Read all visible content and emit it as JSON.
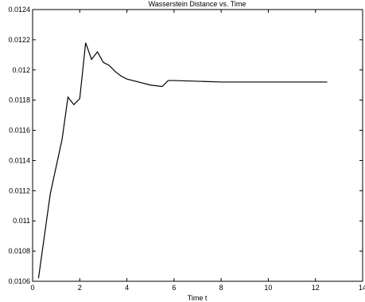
{
  "chart_data": {
    "type": "line",
    "title": "Wasserstein Distance vs. Time",
    "x_label": "Time t",
    "x": [
      0.25,
      0.75,
      1.25,
      1.5,
      1.75,
      2.0,
      2.25,
      2.5,
      2.75,
      3.0,
      3.25,
      3.5,
      3.75,
      4.0,
      4.5,
      5.0,
      5.5,
      5.75,
      6.0,
      8.0,
      10.0,
      12.5
    ],
    "series": [
      {
        "color": "#000000",
        "values": [
          0.01062,
          0.01118,
          0.01154,
          0.01182,
          0.01177,
          0.01181,
          0.01218,
          0.01207,
          0.01212,
          0.01205,
          0.01203,
          0.01199,
          0.01196,
          0.01194,
          0.01192,
          0.0119,
          0.01189,
          0.01193,
          0.01193,
          0.01192,
          0.01192,
          0.01192
        ]
      }
    ],
    "xlim": [
      0,
      14
    ],
    "xticks": [
      0,
      2,
      4,
      6,
      8,
      10,
      12,
      14
    ],
    "ylim": [
      0.0106,
      0.0124
    ],
    "yticks": [
      0.0106,
      0.0108,
      0.011,
      0.0112,
      0.0114,
      0.0116,
      0.0118,
      0.012,
      0.0122,
      0.0124
    ],
    "grid": false
  }
}
